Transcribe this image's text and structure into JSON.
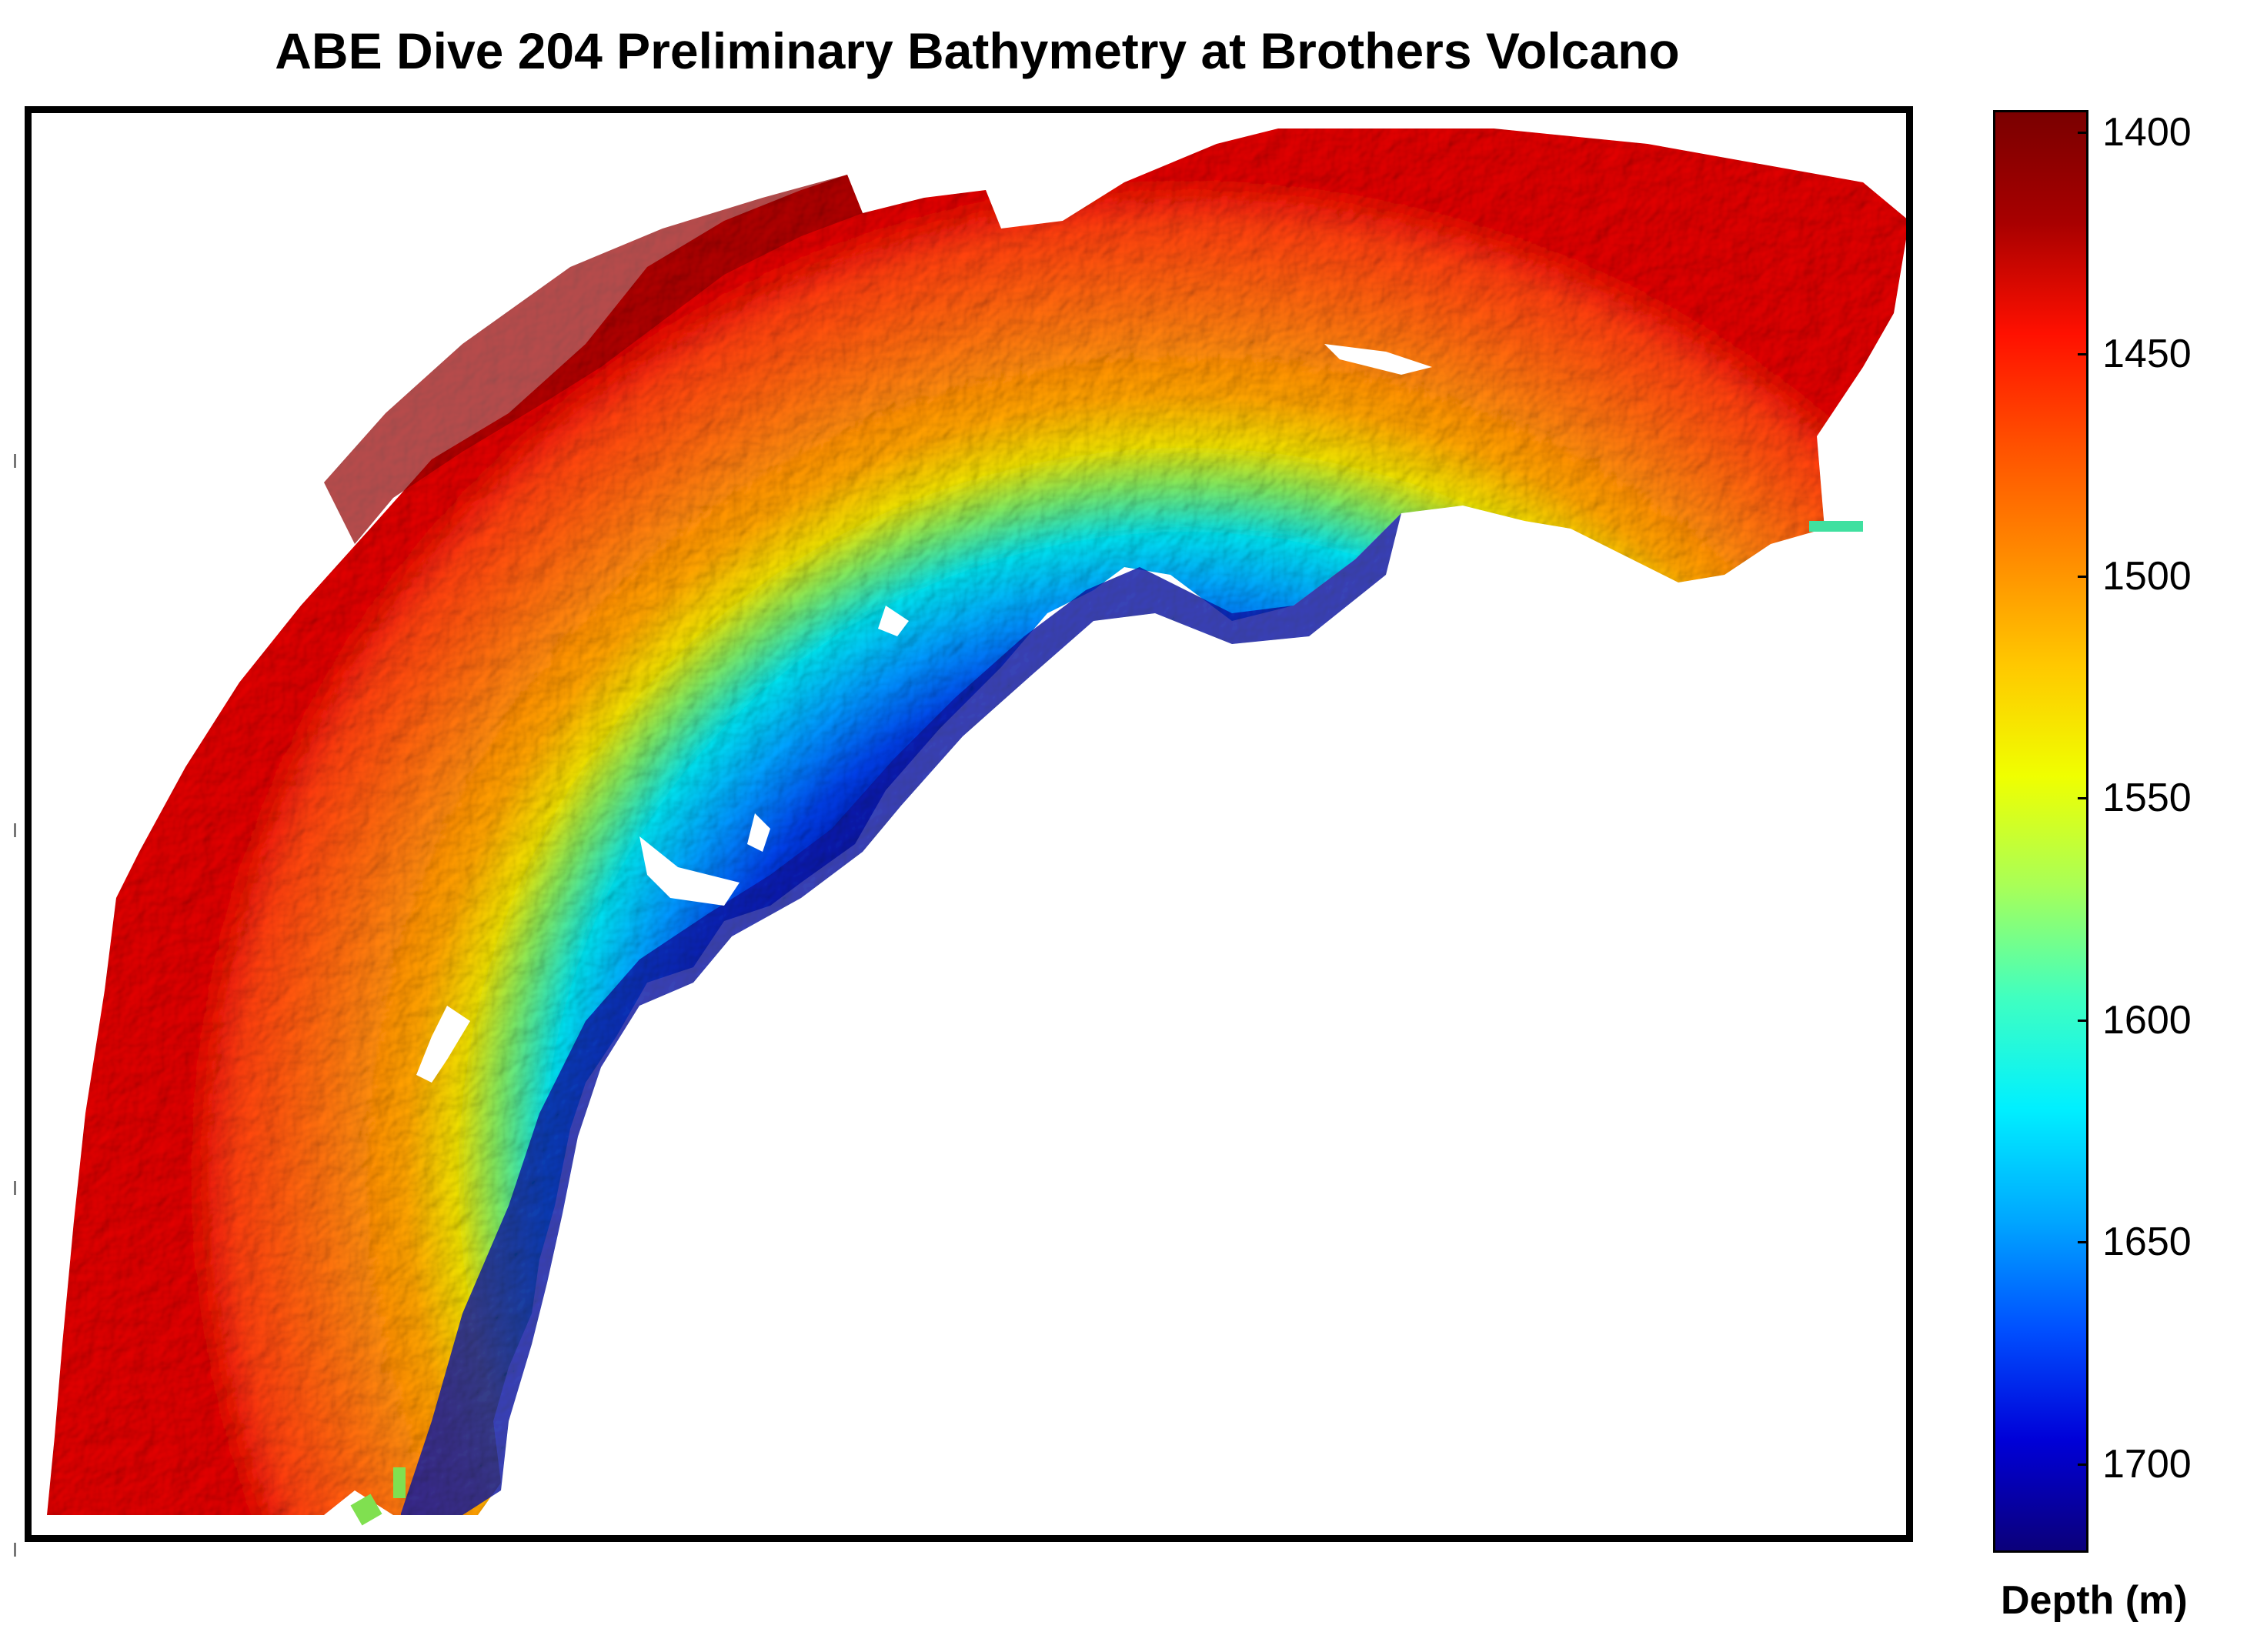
{
  "title": "ABE Dive 204 Preliminary Bathymetry at Brothers Volcano",
  "map": {
    "type": "bathymetry-map",
    "depth_colors": [
      "#0b007a",
      "#0000d8",
      "#0050ff",
      "#00a8ff",
      "#00f0ff",
      "#40ffc0",
      "#a8ff58",
      "#f0ff00",
      "#ffc800",
      "#ff8a00",
      "#ff5000",
      "#ff1000",
      "#a80000",
      "#7a0000"
    ]
  },
  "colorbar": {
    "label": "Depth (m)",
    "range": [
      1395,
      1720
    ],
    "direction": "shallow-top",
    "ticks": [
      "1400",
      "1450",
      "1500",
      "1550",
      "1600",
      "1650",
      "1700"
    ]
  }
}
